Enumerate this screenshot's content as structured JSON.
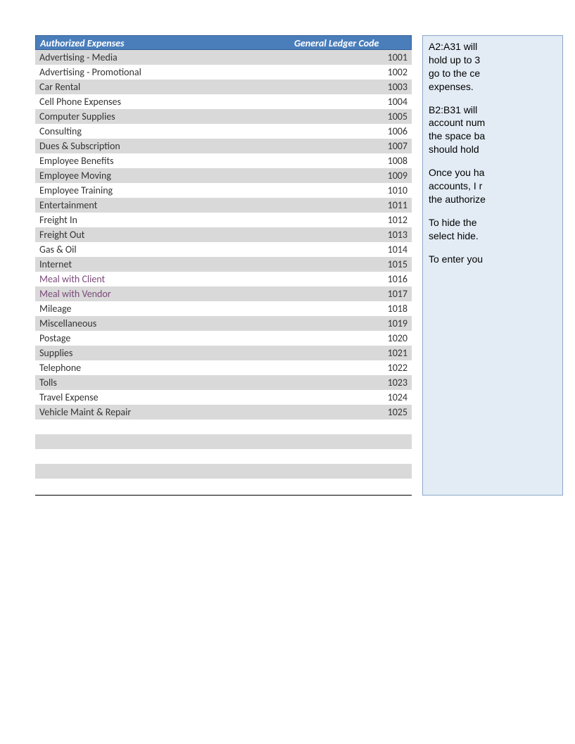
{
  "table": {
    "header": {
      "col_a": "Authorized Expenses",
      "col_b": "General Ledger Code"
    },
    "header_bg": "#4a7ebb",
    "header_text_color": "#ffffff",
    "row_odd_bg": "#d9d9d9",
    "row_even_bg": "#ffffff",
    "purple_text_color": "#7a4a7a",
    "rows": [
      {
        "name": "Advertising - Media",
        "code": "1001",
        "purple": false
      },
      {
        "name": "Advertising - Promotional",
        "code": "1002",
        "purple": false
      },
      {
        "name": "Car Rental",
        "code": "1003",
        "purple": false
      },
      {
        "name": "Cell Phone Expenses",
        "code": "1004",
        "purple": false
      },
      {
        "name": "Computer Supplies",
        "code": "1005",
        "purple": false
      },
      {
        "name": "Consulting",
        "code": "1006",
        "purple": false
      },
      {
        "name": "Dues & Subscription",
        "code": "1007",
        "purple": false
      },
      {
        "name": "Employee Benefits",
        "code": "1008",
        "purple": false
      },
      {
        "name": "Employee Moving",
        "code": "1009",
        "purple": false
      },
      {
        "name": "Employee Training",
        "code": "1010",
        "purple": false
      },
      {
        "name": "Entertainment",
        "code": "1011",
        "purple": false
      },
      {
        "name": "Freight In",
        "code": "1012",
        "purple": false
      },
      {
        "name": "Freight Out",
        "code": "1013",
        "purple": false
      },
      {
        "name": "Gas & Oil",
        "code": "1014",
        "purple": false
      },
      {
        "name": "Internet",
        "code": "1015",
        "purple": false
      },
      {
        "name": "Meal with Client",
        "code": "1016",
        "purple": true
      },
      {
        "name": "Meal with Vendor",
        "code": "1017",
        "purple": true
      },
      {
        "name": "Mileage",
        "code": "1018",
        "purple": false
      },
      {
        "name": "Miscellaneous",
        "code": "1019",
        "purple": false
      },
      {
        "name": "Postage",
        "code": "1020",
        "purple": false
      },
      {
        "name": "Supplies",
        "code": "1021",
        "purple": false
      },
      {
        "name": "Telephone",
        "code": "1022",
        "purple": false
      },
      {
        "name": "Tolls",
        "code": "1023",
        "purple": false
      },
      {
        "name": "Travel Expense",
        "code": "1024",
        "purple": false
      },
      {
        "name": "Vehicle Maint & Repair",
        "code": "1025",
        "purple": false
      }
    ]
  },
  "note": {
    "bg": "#e3ecf5",
    "border": "#8aa8c8",
    "lines": [
      "A2:A31 will hold up to 3 go to the ce expenses.",
      "B2:B31 will account num the space ba should hold",
      "Once you ha accounts, I r the authorize",
      "To hide the select hide.",
      "To enter you"
    ],
    "p1_l1": "A2:A31 will",
    "p1_l2": "hold up to 3",
    "p1_l3": "go to the ce",
    "p1_l4": "expenses.",
    "p2_l1": "B2:B31 will",
    "p2_l2": "account num",
    "p2_l3": "the space ba",
    "p2_l4": "should hold",
    "p3_l1": "Once you ha",
    "p3_l2": "accounts, I r",
    "p3_l3": "the authorize",
    "p4_l1": "To hide the",
    "p4_l2": "select hide.",
    "p5_l1": "To enter you"
  }
}
